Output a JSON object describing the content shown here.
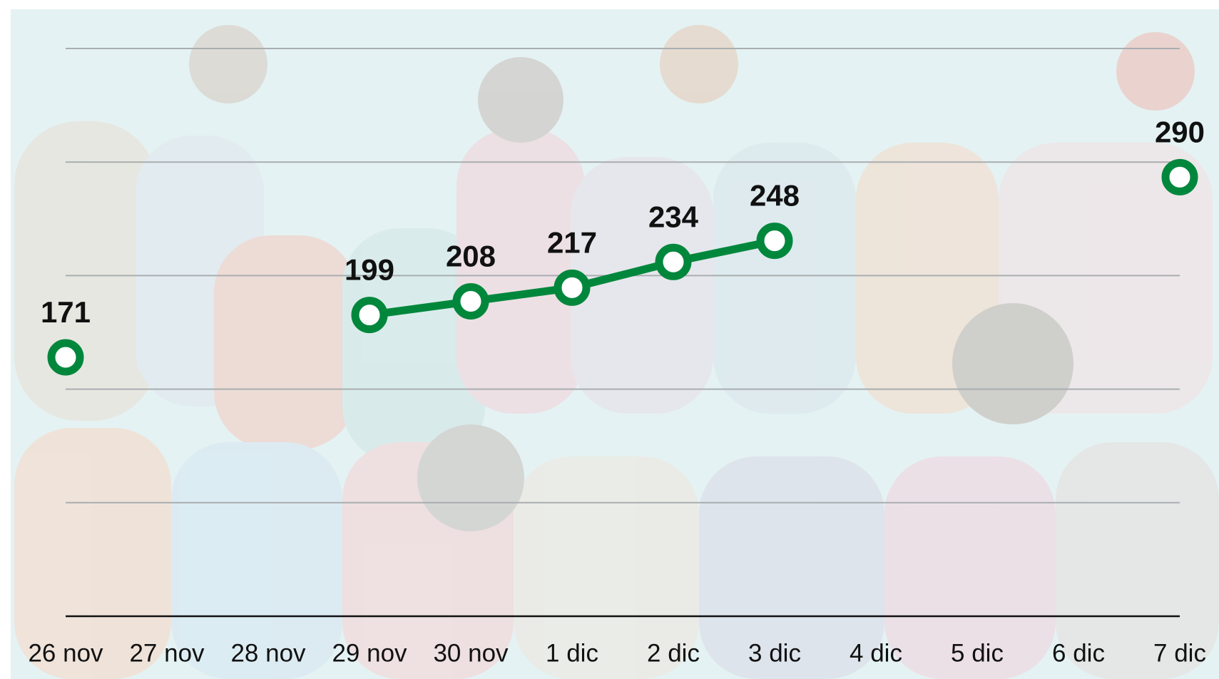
{
  "chart_data": {
    "type": "line",
    "categories": [
      "26 nov",
      "27 nov",
      "28 nov",
      "29 nov",
      "30 nov",
      "1 dic",
      "2 dic",
      "3 dic",
      "4 dic",
      "5 dic",
      "6 dic",
      "7 dic"
    ],
    "series": [
      {
        "color": "#00873c",
        "values": [
          171,
          null,
          null,
          199,
          208,
          217,
          234,
          248,
          null,
          null,
          null,
          290
        ]
      }
    ],
    "ylim": [
      0,
      375
    ],
    "yticks": [
      0,
      75,
      150,
      225,
      300,
      375
    ],
    "grid": true
  }
}
